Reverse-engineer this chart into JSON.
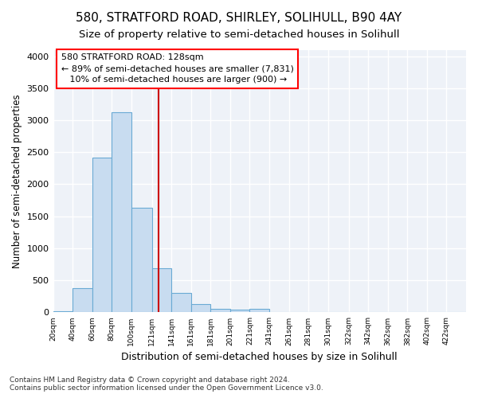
{
  "title1": "580, STRATFORD ROAD, SHIRLEY, SOLIHULL, B90 4AY",
  "title2": "Size of property relative to semi-detached houses in Solihull",
  "xlabel": "Distribution of semi-detached houses by size in Solihull",
  "ylabel": "Number of semi-detached properties",
  "footnote1": "Contains HM Land Registry data © Crown copyright and database right 2024.",
  "footnote2": "Contains public sector information licensed under the Open Government Licence v3.0.",
  "bar_edges": [
    20,
    40,
    60,
    80,
    100,
    121,
    141,
    161,
    181,
    201,
    221,
    241,
    261,
    281,
    301,
    322,
    342,
    362,
    382,
    402,
    422
  ],
  "bar_heights": [
    20,
    380,
    2420,
    3130,
    1630,
    690,
    300,
    130,
    60,
    40,
    50,
    5,
    3,
    2,
    1,
    1,
    0,
    0,
    0,
    0,
    0
  ],
  "bar_color": "#c8dcf0",
  "bar_edgecolor": "#6aaad4",
  "vline_x": 128,
  "vline_color": "#cc0000",
  "property_size": 128,
  "pct_smaller": 89,
  "count_smaller": 7831,
  "pct_larger": 10,
  "count_larger": 900,
  "ylim": [
    0,
    4100
  ],
  "yticks": [
    0,
    500,
    1000,
    1500,
    2000,
    2500,
    3000,
    3500,
    4000
  ],
  "tick_labels": [
    "20sqm",
    "40sqm",
    "60sqm",
    "80sqm",
    "100sqm",
    "121sqm",
    "141sqm",
    "161sqm",
    "181sqm",
    "201sqm",
    "221sqm",
    "241sqm",
    "261sqm",
    "281sqm",
    "301sqm",
    "322sqm",
    "342sqm",
    "362sqm",
    "382sqm",
    "402sqm",
    "422sqm"
  ],
  "background_color": "#ffffff",
  "plot_background": "#eef2f8",
  "grid_color": "#ffffff",
  "title1_fontsize": 11,
  "title2_fontsize": 9.5,
  "xlabel_fontsize": 9,
  "ylabel_fontsize": 8.5,
  "footnote_fontsize": 6.5
}
